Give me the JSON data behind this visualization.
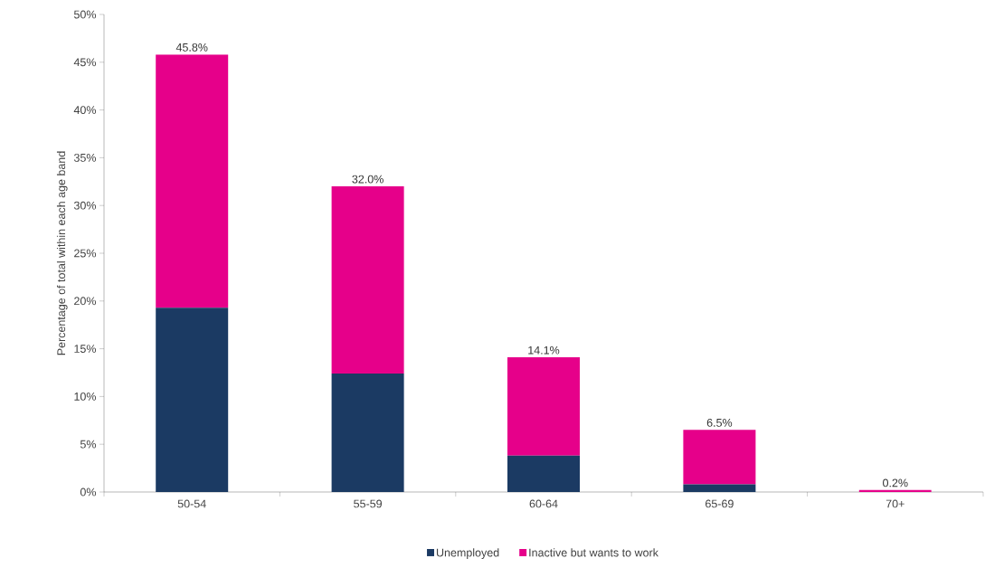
{
  "chart_data": {
    "type": "bar",
    "stacked": true,
    "ylabel": "Percentage of total within each age band",
    "categories": [
      "50-54",
      "55-59",
      "60-64",
      "65-69",
      "70+"
    ],
    "series": [
      {
        "name": "Unemployed",
        "color": "#1b3a63",
        "values": [
          19.3,
          12.4,
          3.8,
          0.8,
          0.0
        ]
      },
      {
        "name": "Inactive but wants to work",
        "color": "#e6008a",
        "values": [
          26.5,
          19.6,
          10.3,
          5.7,
          0.2
        ]
      }
    ],
    "totals": [
      "45.8%",
      "32.0%",
      "14.1%",
      "6.5%",
      "0.2%"
    ],
    "ylim": [
      0,
      50
    ],
    "yticks": [
      {
        "value": 0,
        "label": "0%"
      },
      {
        "value": 5,
        "label": "5%"
      },
      {
        "value": 10,
        "label": "10%"
      },
      {
        "value": 15,
        "label": "15%"
      },
      {
        "value": 20,
        "label": "20%"
      },
      {
        "value": 25,
        "label": "25%"
      },
      {
        "value": 30,
        "label": "30%"
      },
      {
        "value": 35,
        "label": "35%"
      },
      {
        "value": 40,
        "label": "40%"
      },
      {
        "value": 45,
        "label": "45%"
      },
      {
        "value": 50,
        "label": "50%"
      }
    ],
    "grid": false,
    "legend": "bottom"
  }
}
